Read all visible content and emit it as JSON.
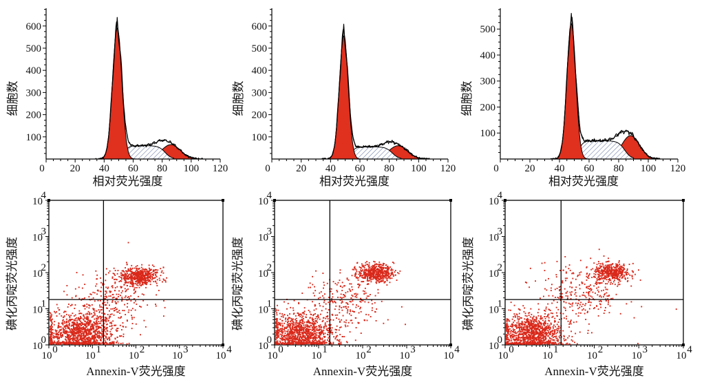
{
  "chart_data": [
    {
      "type": "area",
      "panel": "top-left",
      "ylabel": "细胞数",
      "xlabel": "相对荧光强度",
      "x_ticks": [
        "0",
        "20",
        "40",
        "60",
        "80",
        "100",
        "120"
      ],
      "y_ticks": [
        "100",
        "200",
        "300",
        "400",
        "500",
        "600"
      ],
      "xlim": [
        0,
        120
      ],
      "ylim": [
        0,
        680
      ],
      "components": {
        "g1_peak": {
          "center": 49,
          "sigma": 3.2,
          "height": 590
        },
        "s_phase": {
          "from": 54,
          "to": 82,
          "level": 60
        },
        "g2_peak": {
          "center": 86,
          "sigma": 6.5,
          "height": 65
        }
      },
      "envelope_max": 640
    },
    {
      "type": "area",
      "panel": "top-middle",
      "ylabel": "细胞数",
      "xlabel": "相对荧光强度",
      "x_ticks": [
        "0",
        "20",
        "40",
        "60",
        "80",
        "100",
        "120"
      ],
      "y_ticks": [
        "100",
        "200",
        "300",
        "400",
        "500",
        "600"
      ],
      "xlim": [
        0,
        120
      ],
      "ylim": [
        0,
        680
      ],
      "components": {
        "g1_peak": {
          "center": 49,
          "sigma": 3.0,
          "height": 555
        },
        "s_phase": {
          "from": 54,
          "to": 82,
          "level": 55
        },
        "g2_peak": {
          "center": 86,
          "sigma": 6.5,
          "height": 60
        }
      },
      "envelope_max": 610
    },
    {
      "type": "area",
      "panel": "top-right",
      "ylabel": "细胞数",
      "xlabel": "相对荧光强度",
      "x_ticks": [
        "0",
        "20",
        "40",
        "60",
        "80",
        "100",
        "120"
      ],
      "y_ticks": [
        "100",
        "200",
        "300",
        "400",
        "500"
      ],
      "xlim": [
        0,
        120
      ],
      "ylim": [
        0,
        580
      ],
      "components": {
        "g1_peak": {
          "center": 48,
          "sigma": 3.0,
          "height": 520
        },
        "s_phase": {
          "from": 53,
          "to": 84,
          "level": 70
        },
        "g2_peak": {
          "center": 88,
          "sigma": 6.0,
          "height": 90
        }
      },
      "envelope_max": 560
    },
    {
      "type": "scatter",
      "panel": "bottom-left",
      "ylabel": "碘化丙啶荧光强度",
      "xlabel": "Annexin-V荧光强度",
      "x_scale": "log",
      "y_scale": "log",
      "xlim": [
        1,
        10000
      ],
      "ylim": [
        1,
        10000
      ],
      "x_ticks": [
        {
          "base": "10",
          "exp": "0"
        },
        {
          "base": "10",
          "exp": "1"
        },
        {
          "base": "10",
          "exp": "2"
        },
        {
          "base": "10",
          "exp": "3"
        },
        {
          "base": "10",
          "exp": "4"
        }
      ],
      "y_ticks": [
        {
          "base": "10",
          "exp": "0"
        },
        {
          "base": "10",
          "exp": "1"
        },
        {
          "base": "10",
          "exp": "2"
        },
        {
          "base": "10",
          "exp": "3"
        },
        {
          "base": "10",
          "exp": "4"
        }
      ],
      "quadrant_x": 18,
      "quadrant_y": 18,
      "clusters": [
        {
          "cx": 5,
          "cy": 2,
          "sx": 0.42,
          "sy": 0.3,
          "n": 1200
        },
        {
          "cx": 120,
          "cy": 80,
          "sx": 0.22,
          "sy": 0.12,
          "n": 500
        },
        {
          "cx": 30,
          "cy": 20,
          "sx": 0.4,
          "sy": 0.4,
          "n": 280
        }
      ]
    },
    {
      "type": "scatter",
      "panel": "bottom-middle",
      "ylabel": "碘化丙啶荧光强度",
      "xlabel": "Annexin-V荧光强度",
      "x_scale": "log",
      "y_scale": "log",
      "xlim": [
        1,
        10000
      ],
      "ylim": [
        1,
        10000
      ],
      "x_ticks": [
        {
          "base": "10",
          "exp": "0"
        },
        {
          "base": "10",
          "exp": "1"
        },
        {
          "base": "10",
          "exp": "2"
        },
        {
          "base": "10",
          "exp": "3"
        },
        {
          "base": "10",
          "exp": "4"
        }
      ],
      "y_ticks": [
        {
          "base": "10",
          "exp": "0"
        },
        {
          "base": "10",
          "exp": "1"
        },
        {
          "base": "10",
          "exp": "2"
        },
        {
          "base": "10",
          "exp": "3"
        },
        {
          "base": "10",
          "exp": "4"
        }
      ],
      "quadrant_x": 18,
      "quadrant_y": 18,
      "clusters": [
        {
          "cx": 4,
          "cy": 2,
          "sx": 0.38,
          "sy": 0.28,
          "n": 1100
        },
        {
          "cx": 200,
          "cy": 100,
          "sx": 0.2,
          "sy": 0.12,
          "n": 480
        },
        {
          "cx": 40,
          "cy": 15,
          "sx": 0.45,
          "sy": 0.45,
          "n": 260
        }
      ]
    },
    {
      "type": "scatter",
      "panel": "bottom-right",
      "ylabel": "碘化丙啶荧光强度",
      "xlabel": "Annexin-V荧光强度",
      "x_scale": "log",
      "y_scale": "log",
      "xlim": [
        1,
        10000
      ],
      "ylim": [
        1,
        10000
      ],
      "x_ticks": [
        {
          "base": "10",
          "exp": "0"
        },
        {
          "base": "10",
          "exp": "1"
        },
        {
          "base": "10",
          "exp": "2"
        },
        {
          "base": "10",
          "exp": "3"
        },
        {
          "base": "10",
          "exp": "4"
        }
      ],
      "y_ticks": [
        {
          "base": "10",
          "exp": "0"
        },
        {
          "base": "10",
          "exp": "1"
        },
        {
          "base": "10",
          "exp": "2"
        },
        {
          "base": "10",
          "exp": "3"
        },
        {
          "base": "10",
          "exp": "4"
        }
      ],
      "quadrant_x": 18,
      "quadrant_y": 18,
      "clusters": [
        {
          "cx": 4,
          "cy": 2,
          "sx": 0.35,
          "sy": 0.28,
          "n": 1100
        },
        {
          "cx": 250,
          "cy": 100,
          "sx": 0.2,
          "sy": 0.12,
          "n": 420
        },
        {
          "cx": 50,
          "cy": 25,
          "sx": 0.5,
          "sy": 0.45,
          "n": 300
        }
      ]
    }
  ],
  "colors": {
    "fill": "#e0301e",
    "fill_dark": "#b8322a",
    "dot": "#d9281a",
    "line": "#000000",
    "hatch": "#6f7faa"
  }
}
